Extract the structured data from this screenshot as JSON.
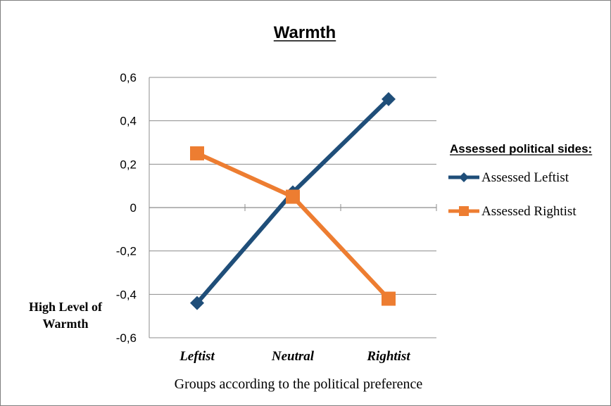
{
  "chart_data": {
    "type": "line",
    "title": "Warmth",
    "xlabel": "Groups according to the political preference",
    "ylabel": "High Level of Warmth",
    "ylabel_lines": [
      "High Level of",
      "Warmth"
    ],
    "categories": [
      "Leftist",
      "Neutral",
      "Rightist"
    ],
    "ylim": [
      -0.6,
      0.6
    ],
    "yticks": [
      0.6,
      0.4,
      0.2,
      0,
      -0.2,
      -0.4,
      -0.6
    ],
    "ytick_labels": [
      "0,6",
      "0,4",
      "0,2",
      "0",
      "-0,2",
      "-0,4",
      "-0,6"
    ],
    "grid": true,
    "legend_position": "right",
    "legend_title": "Assessed political sides:",
    "series": [
      {
        "name": "Assessed Leftist",
        "values": [
          -0.44,
          0.07,
          0.5
        ],
        "color": "#1f4e79",
        "marker": "diamond"
      },
      {
        "name": "Assessed Rightist",
        "values": [
          0.25,
          0.05,
          -0.42
        ],
        "color": "#ed7d31",
        "marker": "square"
      }
    ]
  }
}
